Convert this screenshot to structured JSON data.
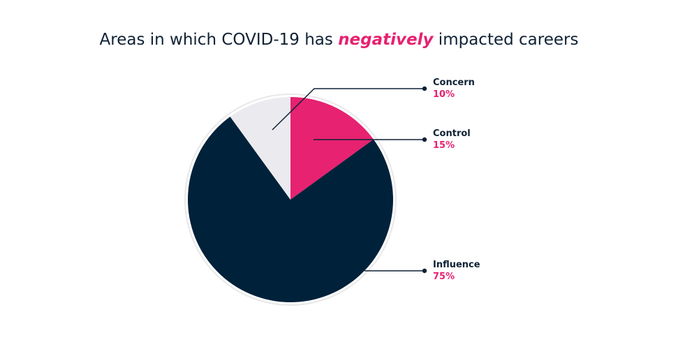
{
  "title": {
    "before": "Areas in which COVID-19 has ",
    "emphasis": "negatively",
    "after": " impacted careers"
  },
  "colors": {
    "title": "#0f2135",
    "accent": "#e62271",
    "label_name": "#0f2135",
    "label_value": "#e62271",
    "leader": "#0f2135",
    "ring": "#e8e8ea"
  },
  "chart_data": {
    "type": "pie",
    "title": "Areas in which COVID-19 has negatively impacted careers",
    "start": "12 o'clock",
    "direction": "clockwise",
    "slices": [
      {
        "label": "Control",
        "value": 15,
        "value_label": "15%",
        "color": "#e62271"
      },
      {
        "label": "Influence",
        "value": 75,
        "value_label": "75%",
        "color": "#00213a"
      },
      {
        "label": "Concern",
        "value": 10,
        "value_label": "10%",
        "color": "#ebebef"
      }
    ]
  }
}
